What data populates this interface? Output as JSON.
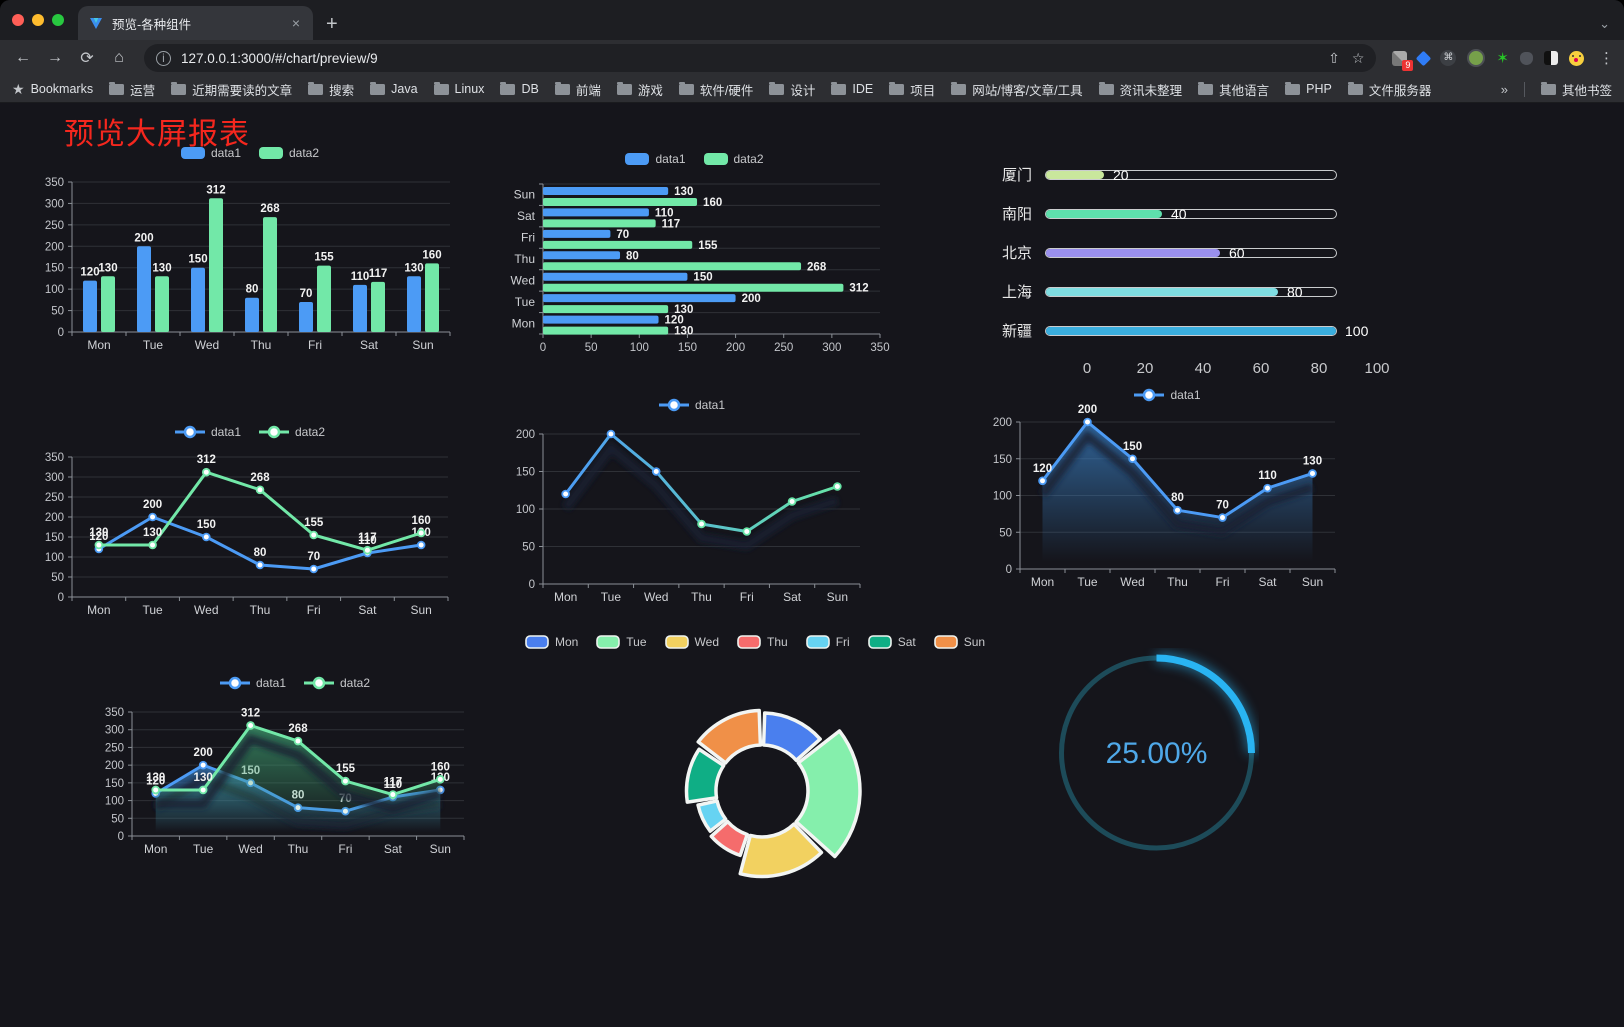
{
  "browser": {
    "tab_title": "预览-各种组件",
    "url": "127.0.0.1:3000/#/chart/preview/9",
    "new_tab": "+",
    "close_tab": "×",
    "bookmarks_label": "Bookmarks",
    "bookmarks": [
      "运营",
      "近期需要读的文章",
      "搜索",
      "Java",
      "Linux",
      "DB",
      "前端",
      "游戏",
      "软件/硬件",
      "设计",
      "IDE",
      "项目",
      "网站/博客/文章/工具",
      "资讯未整理",
      "其他语言",
      "PHP",
      "文件服务器"
    ],
    "bookmarks_overflow": "»",
    "other_bookmarks": "其他书签",
    "extension_badge": "9"
  },
  "page": {
    "title": "预览大屏报表",
    "title_color": "#f5271e",
    "background": "#15151b"
  },
  "chart_data": [
    {
      "id": "bar-vertical",
      "type": "bar",
      "categories": [
        "Mon",
        "Tue",
        "Wed",
        "Thu",
        "Fri",
        "Sat",
        "Sun"
      ],
      "series": [
        {
          "name": "data1",
          "color": "#4c9bf5",
          "values": [
            120,
            200,
            150,
            80,
            70,
            110,
            130
          ]
        },
        {
          "name": "data2",
          "color": "#72e8a8",
          "values": [
            130,
            130,
            312,
            268,
            155,
            117,
            160
          ]
        }
      ],
      "ylim": [
        0,
        350
      ],
      "yticks": [
        0,
        50,
        100,
        150,
        200,
        250,
        300,
        350
      ],
      "legend_position": "top",
      "grid": true,
      "value_labels": true
    },
    {
      "id": "bar-horizontal",
      "type": "hbar",
      "categories": [
        "Mon",
        "Tue",
        "Wed",
        "Thu",
        "Fri",
        "Sat",
        "Sun"
      ],
      "categories_display_top_to_bottom": [
        "Sun",
        "Sat",
        "Fri",
        "Thu",
        "Wed",
        "Tue",
        "Mon"
      ],
      "series": [
        {
          "name": "data1",
          "color": "#4c9bf5",
          "values": [
            120,
            200,
            150,
            80,
            70,
            110,
            130
          ]
        },
        {
          "name": "data2",
          "color": "#72e8a8",
          "values": [
            130,
            130,
            312,
            268,
            155,
            117,
            160
          ]
        }
      ],
      "xlim": [
        0,
        350
      ],
      "xticks": [
        0,
        50,
        100,
        150,
        200,
        250,
        300,
        350
      ],
      "legend_position": "top",
      "value_labels": true
    },
    {
      "id": "progress-bars",
      "type": "progress",
      "rows": [
        {
          "label": "厦门",
          "value": 20,
          "color": "#c9e79c"
        },
        {
          "label": "南阳",
          "value": 40,
          "color": "#5ee0ad"
        },
        {
          "label": "北京",
          "value": 60,
          "color": "#9a90ee"
        },
        {
          "label": "上海",
          "value": 80,
          "color": "#7fdde2"
        },
        {
          "label": "新疆",
          "value": 100,
          "color": "#3aaede"
        }
      ],
      "max": 100,
      "xticks": [
        0,
        20,
        40,
        60,
        80,
        100
      ]
    },
    {
      "id": "line-two-series",
      "type": "line",
      "categories": [
        "Mon",
        "Tue",
        "Wed",
        "Thu",
        "Fri",
        "Sat",
        "Sun"
      ],
      "series": [
        {
          "name": "data1",
          "color": "#4c9bf5",
          "values": [
            120,
            200,
            150,
            80,
            70,
            110,
            130
          ]
        },
        {
          "name": "data2",
          "color": "#72e8a8",
          "values": [
            130,
            130,
            312,
            268,
            155,
            117,
            160
          ]
        }
      ],
      "ylim": [
        0,
        350
      ],
      "yticks": [
        0,
        50,
        100,
        150,
        200,
        250,
        300,
        350
      ],
      "legend_position": "top",
      "value_labels": true,
      "area": false
    },
    {
      "id": "line-gradient",
      "type": "line",
      "categories": [
        "Mon",
        "Tue",
        "Wed",
        "Thu",
        "Fri",
        "Sat",
        "Sun"
      ],
      "series": [
        {
          "name": "data1",
          "color": "#4c9bf5",
          "gradient": [
            "#4c9bf5",
            "#67e4a6"
          ],
          "values": [
            120,
            200,
            150,
            80,
            70,
            110,
            130
          ]
        }
      ],
      "ylim": [
        0,
        200
      ],
      "yticks": [
        0,
        50,
        100,
        150,
        200
      ],
      "legend_position": "top",
      "value_labels": false,
      "shadow": true,
      "area": false
    },
    {
      "id": "line-area-single",
      "type": "line",
      "categories": [
        "Mon",
        "Tue",
        "Wed",
        "Thu",
        "Fri",
        "Sat",
        "Sun"
      ],
      "series": [
        {
          "name": "data1",
          "color": "#4c9bf5",
          "values": [
            120,
            200,
            150,
            80,
            70,
            110,
            130
          ],
          "area": true
        }
      ],
      "ylim": [
        0,
        200
      ],
      "yticks": [
        0,
        50,
        100,
        150,
        200
      ],
      "legend_position": "top",
      "value_labels": true,
      "shadow": true
    },
    {
      "id": "line-area-two",
      "type": "line",
      "categories": [
        "Mon",
        "Tue",
        "Wed",
        "Thu",
        "Fri",
        "Sat",
        "Sun"
      ],
      "series": [
        {
          "name": "data1",
          "color": "#4c9bf5",
          "values": [
            120,
            200,
            150,
            80,
            70,
            110,
            130
          ],
          "area": true
        },
        {
          "name": "data2",
          "color": "#72e8a8",
          "values": [
            130,
            130,
            312,
            268,
            155,
            117,
            160
          ],
          "area": true
        }
      ],
      "ylim": [
        0,
        350
      ],
      "yticks": [
        0,
        50,
        100,
        150,
        200,
        250,
        300,
        350
      ],
      "legend_position": "top",
      "value_labels": true,
      "shadow": true
    },
    {
      "id": "rose-pie",
      "type": "pie",
      "rose": true,
      "slices": [
        {
          "name": "Mon",
          "value": 120,
          "color": "#4a7fee"
        },
        {
          "name": "Tue",
          "value": 200,
          "color": "#85efac"
        },
        {
          "name": "Wed",
          "value": 150,
          "color": "#f2d160"
        },
        {
          "name": "Thu",
          "value": 80,
          "color": "#f56c6c"
        },
        {
          "name": "Fri",
          "value": 70,
          "color": "#66d3f2"
        },
        {
          "name": "Sat",
          "value": 110,
          "color": "#0fae85"
        },
        {
          "name": "Sun",
          "value": 130,
          "color": "#f09048"
        }
      ],
      "legend_position": "top"
    },
    {
      "id": "gauge",
      "type": "gauge",
      "value": 25,
      "value_label": "25.00%",
      "color": "#29b4f2",
      "track_color": "#1d4b59",
      "text_color": "#4fa8e8"
    }
  ]
}
